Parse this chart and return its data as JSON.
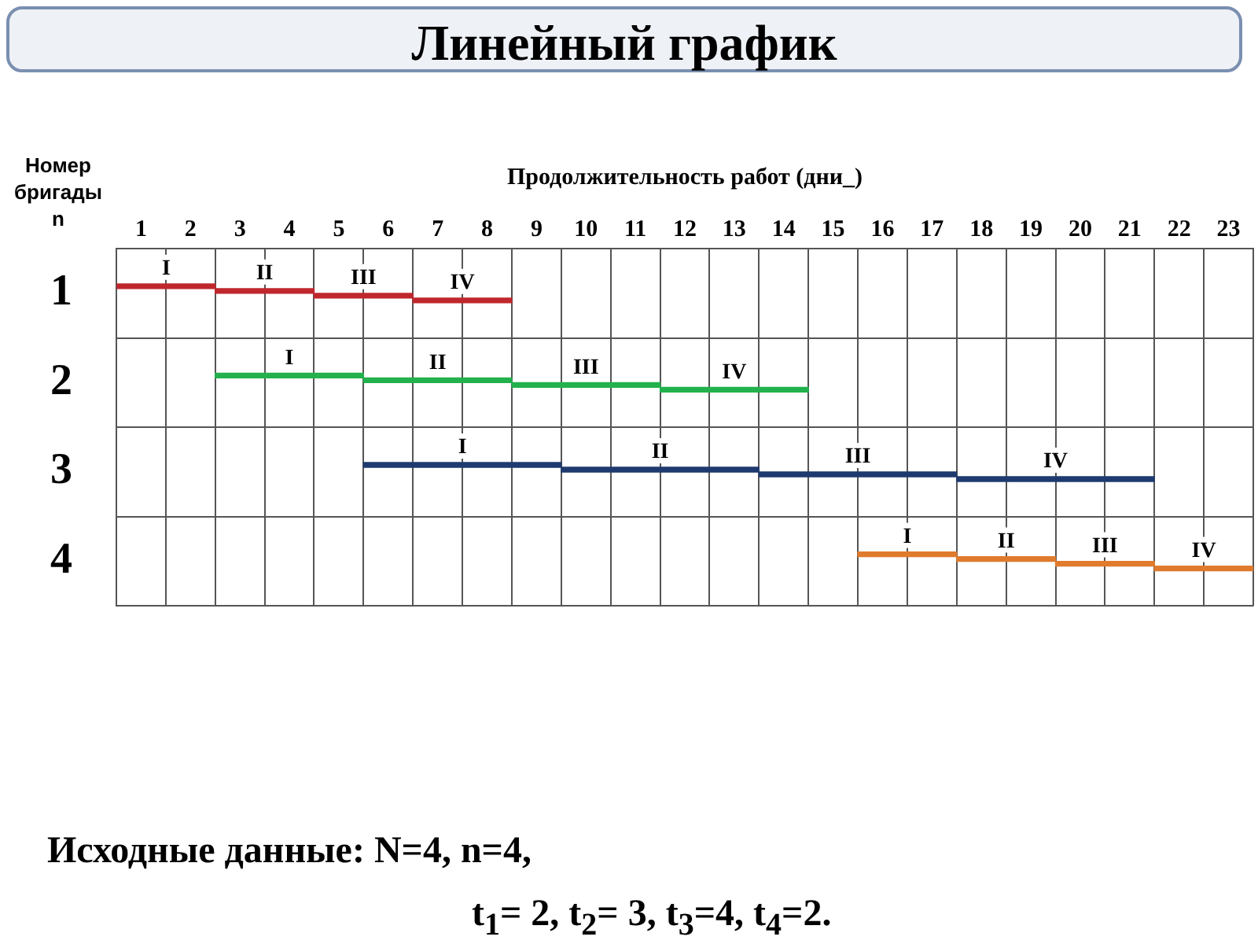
{
  "chart_data": {
    "type": "bar",
    "orientation": "horizontal",
    "title": "Линейный график",
    "xlabel": "Продолжительность работ (дни_)",
    "ylabel": "Номер бригады n",
    "categories": [
      "1",
      "2",
      "3",
      "4"
    ],
    "series": [
      {
        "name": "I",
        "colors": [
          "#c0272d",
          "#22b14c",
          "#1f3a6e",
          "#e07b2e"
        ],
        "values": [
          2,
          3,
          4,
          2
        ],
        "base": [
          0,
          2,
          5,
          15
        ]
      },
      {
        "name": "II",
        "colors": [
          "#c0272d",
          "#22b14c",
          "#1f3a6e",
          "#e07b2e"
        ],
        "values": [
          2,
          3,
          4,
          2
        ],
        "base": [
          2,
          5,
          9,
          17
        ]
      },
      {
        "name": "III",
        "colors": [
          "#c0272d",
          "#22b14c",
          "#1f3a6e",
          "#e07b2e"
        ],
        "values": [
          2,
          3,
          4,
          2
        ],
        "base": [
          4,
          8,
          13,
          19
        ]
      },
      {
        "name": "IV",
        "colors": [
          "#c0272d",
          "#22b14c",
          "#1f3a6e",
          "#e07b2e"
        ],
        "values": [
          2,
          3,
          4,
          2
        ],
        "base": [
          6,
          11,
          17,
          21
        ]
      }
    ],
    "xlim": [
      0,
      23
    ],
    "xticks": [
      {
        "value": 0,
        "label": null
      },
      {
        "value": 0.5,
        "label": "1"
      },
      {
        "value": 1,
        "label": null
      },
      {
        "value": 1.5,
        "label": "2"
      },
      {
        "value": 2,
        "label": null
      },
      {
        "value": 2.5,
        "label": "3"
      },
      {
        "value": 3,
        "label": null
      },
      {
        "value": 3.5,
        "label": "4"
      },
      {
        "value": 4,
        "label": null
      },
      {
        "value": 4.5,
        "label": "5"
      },
      {
        "value": 5,
        "label": null
      },
      {
        "value": 5.5,
        "label": "6"
      },
      {
        "value": 6,
        "label": null
      },
      {
        "value": 6.5,
        "label": "7"
      },
      {
        "value": 7,
        "label": null
      },
      {
        "value": 7.5,
        "label": "8"
      },
      {
        "value": 8,
        "label": null
      },
      {
        "value": 8.5,
        "label": "9"
      },
      {
        "value": 9,
        "label": null
      },
      {
        "value": 9.5,
        "label": "10"
      },
      {
        "value": 10,
        "label": null
      },
      {
        "value": 10.5,
        "label": "11"
      },
      {
        "value": 11,
        "label": null
      },
      {
        "value": 11.5,
        "label": "12"
      },
      {
        "value": 12,
        "label": null
      },
      {
        "value": 12.5,
        "label": "13"
      },
      {
        "value": 13,
        "label": null
      },
      {
        "value": 13.5,
        "label": "14"
      },
      {
        "value": 14,
        "label": null
      },
      {
        "value": 14.5,
        "label": "15"
      },
      {
        "value": 15,
        "label": null
      },
      {
        "value": 15.5,
        "label": "16"
      },
      {
        "value": 16,
        "label": null
      },
      {
        "value": 16.5,
        "label": "17"
      },
      {
        "value": 17,
        "label": null
      },
      {
        "value": 17.5,
        "label": "18"
      },
      {
        "value": 18,
        "label": null
      },
      {
        "value": 18.5,
        "label": "19"
      },
      {
        "value": 19,
        "label": null
      },
      {
        "value": 19.5,
        "label": "20"
      },
      {
        "value": 20,
        "label": null
      },
      {
        "value": 20.5,
        "label": "21"
      },
      {
        "value": 21,
        "label": null
      },
      {
        "value": 21.5,
        "label": "22"
      },
      {
        "value": 22,
        "label": null
      },
      {
        "value": 22.5,
        "label": "23"
      },
      {
        "value": 23,
        "label": null
      }
    ],
    "grid": true,
    "legend": false,
    "annotations": [
      "Исходные данные: N=4,  n=4,",
      "t$_{1}$= 2, t$_{2}$= 3, t$_{3}$=4,  t$_{4}$=2."
    ]
  }
}
